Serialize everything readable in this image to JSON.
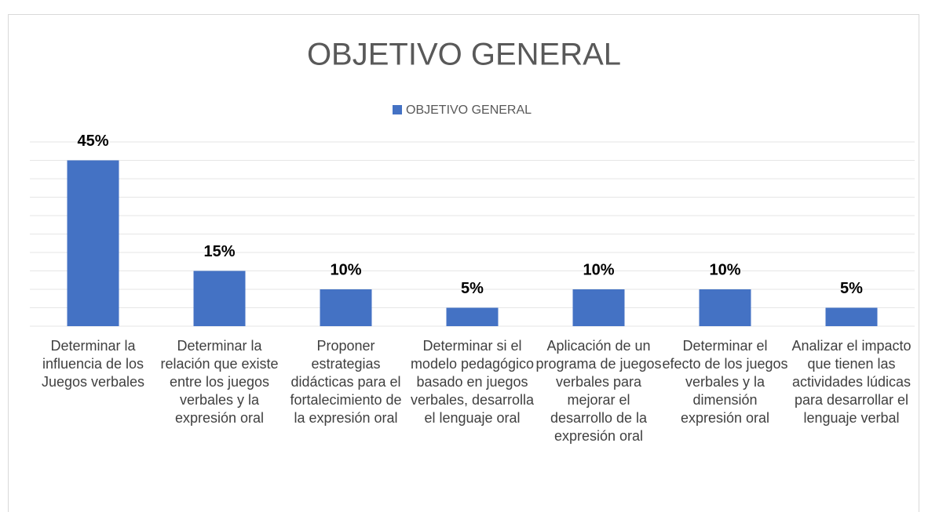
{
  "chart_data": {
    "type": "bar",
    "title": "OBJETIVO GENERAL",
    "categories": [
      "Determinar la influencia de los Juegos verbales",
      "Determinar la relación que existe entre los juegos verbales y la expresión oral",
      "Proponer estrategias didácticas para el fortalecimiento de la expresión oral",
      "Determinar si el modelo pedagógico basado en juegos verbales, desarrolla el lenguaje oral",
      "Aplicación de un programa de juegos verbales para mejorar el desarrollo de la expresión oral",
      "Determinar el efecto de los juegos verbales y la dimensión expresión oral",
      "Analizar el impacto que tienen las actividades lúdicas para desarrollar el lenguaje verbal"
    ],
    "series": [
      {
        "name": "OBJETIVO GENERAL",
        "color": "#4472c4",
        "values": [
          45,
          15,
          10,
          5,
          10,
          10,
          5
        ],
        "value_labels": [
          "45%",
          "15%",
          "10%",
          "5%",
          "10%",
          "10%",
          "5%"
        ]
      }
    ],
    "ylim": [
      0,
      50
    ],
    "yticks": [
      0,
      5,
      10,
      15,
      20,
      25,
      30,
      35,
      40,
      45,
      50
    ],
    "grid": true
  }
}
